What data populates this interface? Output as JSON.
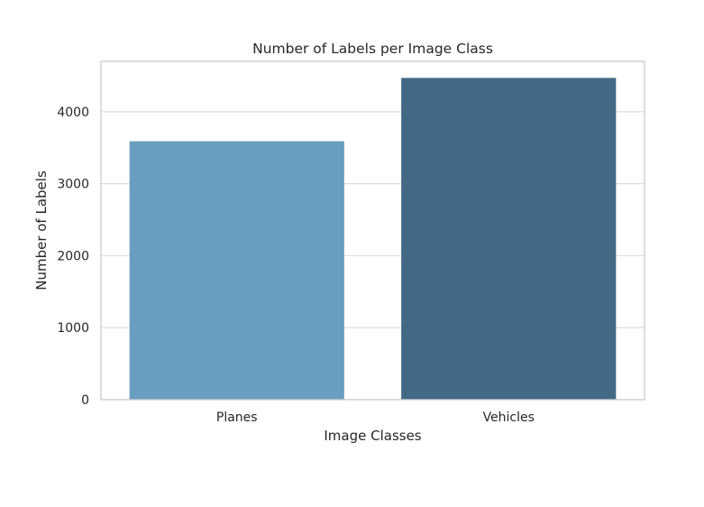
{
  "chart_data": {
    "type": "bar",
    "title": "Number of Labels per Image Class",
    "xlabel": "Image Classes",
    "ylabel": "Number of Labels",
    "categories": [
      "Planes",
      "Vehicles"
    ],
    "values": [
      3590,
      4470
    ],
    "colors": [
      "#6a9ec1",
      "#426985"
    ],
    "ylim": [
      0,
      4700
    ],
    "yticks": [
      0,
      1000,
      2000,
      3000,
      4000
    ],
    "grid": "horizontal",
    "frame_color": "#cccccc",
    "grid_color": "#dddddd"
  }
}
